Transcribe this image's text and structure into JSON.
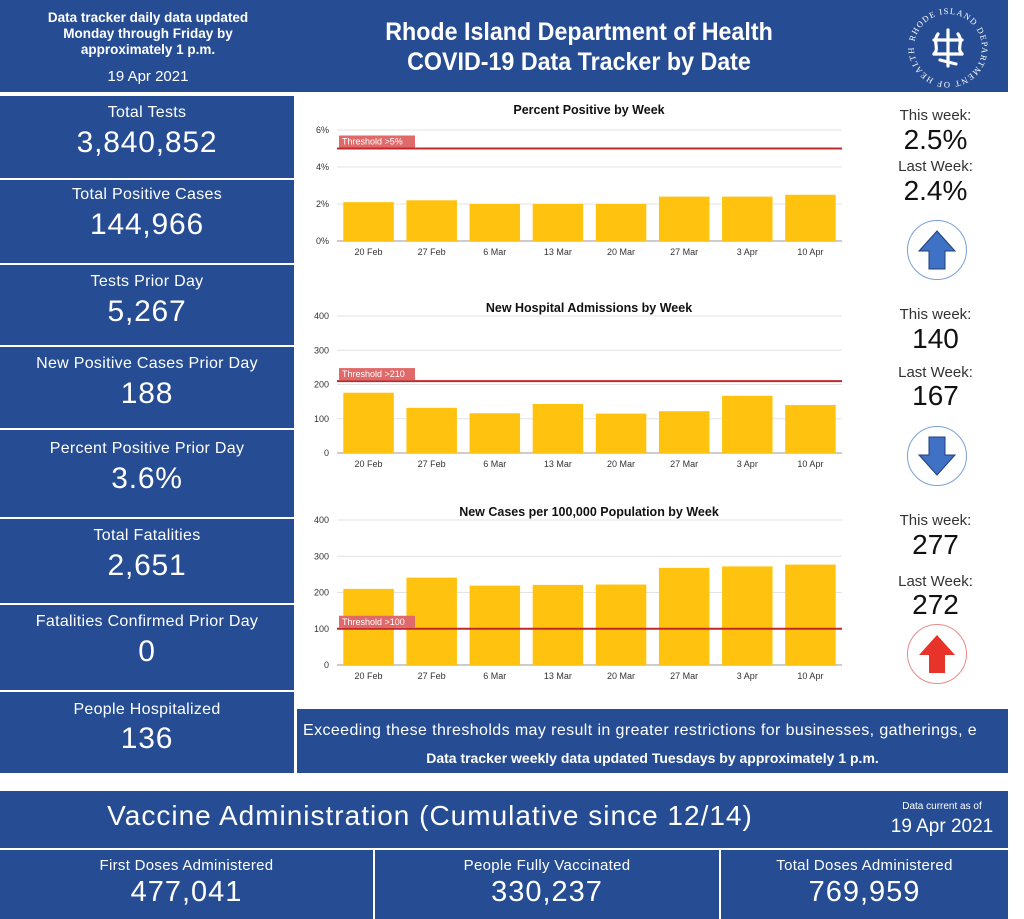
{
  "header": {
    "update_note": "Data tracker daily data updated\nMonday through Friday by\napproximately 1 p.m.",
    "date": "19 Apr 2021",
    "title_line1": "Rhode Island Department of Health",
    "title_line2": "COVID-19 Data Tracker by Date",
    "seal_text": "RHODE ISLAND DEPARTMENT OF HEALTH"
  },
  "stats": [
    {
      "label": "Total Tests",
      "value": "3,840,852"
    },
    {
      "label": "Total Positive Cases",
      "value": "144,966"
    },
    {
      "label": "Tests Prior Day",
      "value": "5,267"
    },
    {
      "label": "New Positive Cases Prior Day",
      "value": "188"
    },
    {
      "label": "Percent Positive Prior Day",
      "value": "3.6%"
    },
    {
      "label": "Total Fatalities",
      "value": "2,651"
    },
    {
      "label": "Fatalities Confirmed Prior Day",
      "value": "0"
    },
    {
      "label": "People Hospitalized",
      "value": "136"
    }
  ],
  "sides": [
    {
      "this_label": "This week:",
      "this_value": "2.5%",
      "last_label": "Last Week:",
      "last_value": "2.4%",
      "arrow": "arrow-up-icon",
      "arrow_color": "#3f72c4"
    },
    {
      "this_label": "This week:",
      "this_value": "140",
      "last_label": "Last Week:",
      "last_value": "167",
      "arrow": "arrow-down-icon",
      "arrow_color": "#3f72c4"
    },
    {
      "this_label": "This week:",
      "this_value": "277",
      "last_label": "Last Week:",
      "last_value": "272",
      "arrow": "arrow-up-icon",
      "arrow_color": "#e8332a"
    }
  ],
  "chart_data": [
    {
      "type": "bar",
      "title": "Percent Positive by Week",
      "categories": [
        "20 Feb",
        "27 Feb",
        "6 Mar",
        "13 Mar",
        "20 Mar",
        "27 Mar",
        "3 Apr",
        "10 Apr"
      ],
      "values": [
        2.1,
        2.2,
        2.0,
        2.0,
        2.0,
        2.4,
        2.4,
        2.5
      ],
      "ylim": [
        0,
        6
      ],
      "yticks": [
        "0%",
        "2%",
        "4%",
        "6%"
      ],
      "threshold": 5,
      "threshold_label": "Threshold >5%",
      "grid": true
    },
    {
      "type": "bar",
      "title": "New Hospital Admissions by Week",
      "categories": [
        "20 Feb",
        "27 Feb",
        "6 Mar",
        "13 Mar",
        "20 Mar",
        "27 Mar",
        "3 Apr",
        "10 Apr"
      ],
      "values": [
        176,
        132,
        116,
        143,
        115,
        122,
        167,
        140
      ],
      "ylim": [
        0,
        400
      ],
      "yticks": [
        "0",
        "100",
        "200",
        "300",
        "400"
      ],
      "threshold": 210,
      "threshold_label": "Threshold >210",
      "grid": true
    },
    {
      "type": "bar",
      "title": "New Cases per 100,000 Population by Week",
      "categories": [
        "20 Feb",
        "27 Feb",
        "6 Mar",
        "13 Mar",
        "20 Mar",
        "27 Mar",
        "3 Apr",
        "10 Apr"
      ],
      "values": [
        210,
        241,
        219,
        221,
        222,
        268,
        272,
        277
      ],
      "ylim": [
        0,
        400
      ],
      "yticks": [
        "0",
        "100",
        "200",
        "300",
        "400"
      ],
      "threshold": 100,
      "threshold_label": "Threshold >100",
      "grid": true
    }
  ],
  "note": {
    "line1": "Exceeding these thresholds may result in greater restrictions for businesses, gatherings, e",
    "line2": "Data tracker weekly data updated Tuesdays by approximately 1 p.m."
  },
  "vaccine": {
    "title": "Vaccine Administration (Cumulative since 12/14)",
    "current_label": "Data current as of",
    "current_date": "19 Apr 2021",
    "boxes": [
      {
        "label": "First Doses Administered",
        "value": "477,041"
      },
      {
        "label": "People Fully Vaccinated",
        "value": "330,237"
      },
      {
        "label": "Total Doses Administered",
        "value": "769,959"
      }
    ]
  },
  "colors": {
    "brand_blue": "#264d93",
    "bar_yellow": "#ffc20e",
    "threshold_red": "#c0282d",
    "arrow_blue": "#3f72c4",
    "arrow_red": "#e8332a"
  }
}
